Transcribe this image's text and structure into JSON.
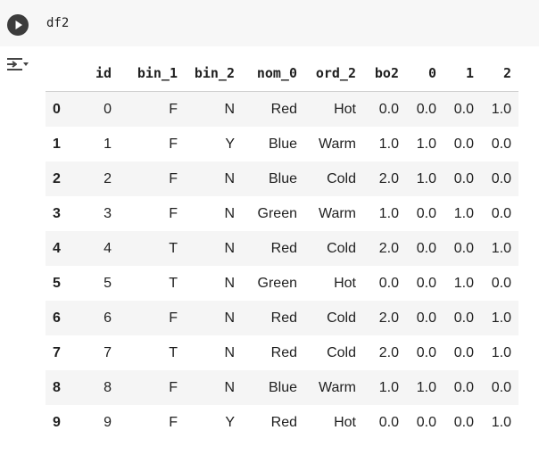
{
  "cell": {
    "code": "df2"
  },
  "table": {
    "columns": [
      "",
      "id",
      "bin_1",
      "bin_2",
      "nom_0",
      "ord_2",
      "bo2",
      "0",
      "1",
      "2"
    ],
    "rows": [
      [
        "0",
        "0",
        "F",
        "N",
        "Red",
        "Hot",
        "0.0",
        "0.0",
        "0.0",
        "1.0"
      ],
      [
        "1",
        "1",
        "F",
        "Y",
        "Blue",
        "Warm",
        "1.0",
        "1.0",
        "0.0",
        "0.0"
      ],
      [
        "2",
        "2",
        "F",
        "N",
        "Blue",
        "Cold",
        "2.0",
        "1.0",
        "0.0",
        "0.0"
      ],
      [
        "3",
        "3",
        "F",
        "N",
        "Green",
        "Warm",
        "1.0",
        "0.0",
        "1.0",
        "0.0"
      ],
      [
        "4",
        "4",
        "T",
        "N",
        "Red",
        "Cold",
        "2.0",
        "0.0",
        "0.0",
        "1.0"
      ],
      [
        "5",
        "5",
        "T",
        "N",
        "Green",
        "Hot",
        "0.0",
        "0.0",
        "1.0",
        "0.0"
      ],
      [
        "6",
        "6",
        "F",
        "N",
        "Red",
        "Cold",
        "2.0",
        "0.0",
        "0.0",
        "1.0"
      ],
      [
        "7",
        "7",
        "T",
        "N",
        "Red",
        "Cold",
        "2.0",
        "0.0",
        "0.0",
        "1.0"
      ],
      [
        "8",
        "8",
        "F",
        "N",
        "Blue",
        "Warm",
        "1.0",
        "1.0",
        "0.0",
        "0.0"
      ],
      [
        "9",
        "9",
        "F",
        "Y",
        "Red",
        "Hot",
        "0.0",
        "0.0",
        "0.0",
        "1.0"
      ]
    ]
  },
  "icons": {
    "run": "play-circle-icon",
    "output_menu": "output-options-icon"
  }
}
